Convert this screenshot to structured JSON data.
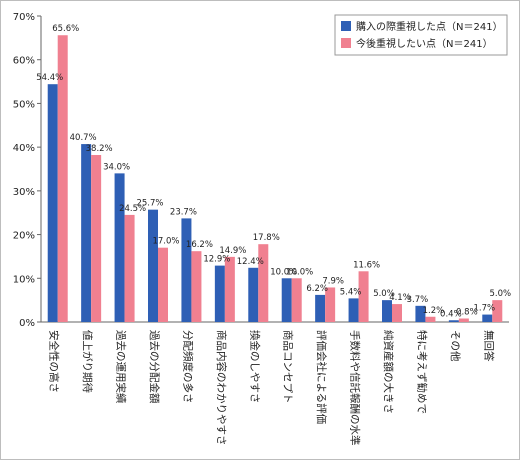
{
  "chart_data": {
    "type": "bar",
    "title": "",
    "xlabel": "",
    "ylabel": "",
    "ylim": [
      0,
      70
    ],
    "yticks": [
      "0%",
      "10%",
      "20%",
      "30%",
      "40%",
      "50%",
      "60%",
      "70%"
    ],
    "grid": false,
    "legend_position": "top-right",
    "categories": [
      "安全性の高さ",
      "値上がり期待",
      "過去の運用実績",
      "過去の分配金額",
      "分配頻度の多さ",
      "商品内容のわかりやすさ",
      "換金のしやすさ",
      "商品コンセプト",
      "評価会社による評価",
      "手数料や信託報酬の水準",
      "純資産額の大きさ",
      "特に考えず勧めで",
      "その他",
      "無回答"
    ],
    "series": [
      {
        "name": "購入の際重視した点（N＝241）",
        "color": "#2e5fb5",
        "values": [
          54.4,
          40.7,
          34.0,
          25.7,
          23.7,
          12.9,
          12.4,
          10.0,
          6.2,
          5.4,
          5.0,
          3.7,
          0.4,
          1.7
        ],
        "labels": [
          "54.4%",
          "40.7%",
          "34.0%",
          "25.7%",
          "23.7%",
          "12.9%",
          "12.4%",
          "10.0%",
          "6.2%",
          "5.4%",
          "5.0%",
          "3.7%",
          "0.4%",
          "1.7%"
        ]
      },
      {
        "name": "今後重視したい点（N＝241）",
        "color": "#f08090",
        "values": [
          65.6,
          38.2,
          24.5,
          17.0,
          16.2,
          14.9,
          17.8,
          10.0,
          7.9,
          11.6,
          4.1,
          1.2,
          0.8,
          5.0
        ],
        "labels": [
          "65.6%",
          "38.2%",
          "24.5%",
          "17.0%",
          "16.2%",
          "14.9%",
          "17.8%",
          "10.0%",
          "7.9%",
          "11.6%",
          "4.1%",
          "1.2%",
          "0.8%",
          "5.0%"
        ]
      }
    ]
  }
}
